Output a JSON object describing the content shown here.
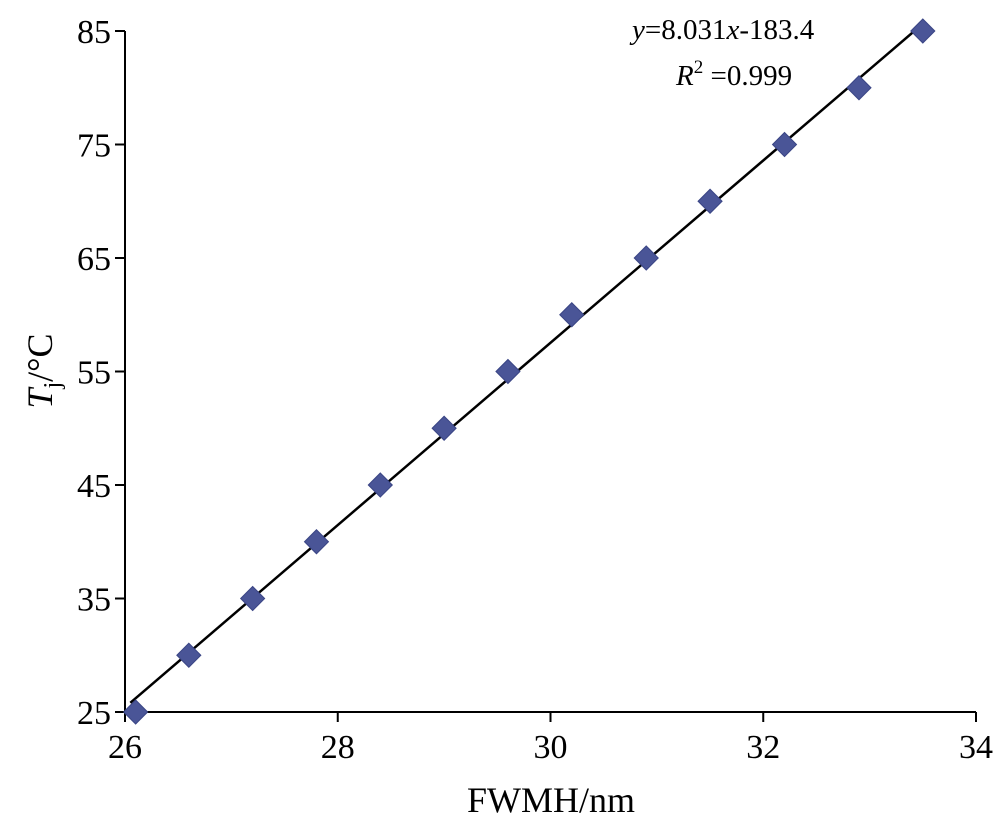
{
  "chart_data": {
    "type": "scatter",
    "title": "",
    "xlabel": "FWMH/nm",
    "ylabel": {
      "symbol": "T",
      "subscript": "j",
      "unit": "/°C"
    },
    "xlim": [
      26,
      34
    ],
    "ylim": [
      25,
      85
    ],
    "x_ticks": [
      26,
      28,
      30,
      32,
      34
    ],
    "y_ticks": [
      25,
      35,
      45,
      55,
      65,
      75,
      85
    ],
    "grid": false,
    "legend": "none",
    "marker": "diamond",
    "colors": {
      "marker": "#4a5597",
      "marker_edge": "#3a4585",
      "fit_line": "#000000"
    },
    "points": [
      {
        "x": 26.1,
        "y": 25
      },
      {
        "x": 26.6,
        "y": 30
      },
      {
        "x": 27.2,
        "y": 35
      },
      {
        "x": 27.8,
        "y": 40
      },
      {
        "x": 28.4,
        "y": 45
      },
      {
        "x": 29.0,
        "y": 50
      },
      {
        "x": 29.6,
        "y": 55
      },
      {
        "x": 30.2,
        "y": 60
      },
      {
        "x": 30.9,
        "y": 65
      },
      {
        "x": 31.5,
        "y": 70
      },
      {
        "x": 32.2,
        "y": 75
      },
      {
        "x": 32.9,
        "y": 80
      },
      {
        "x": 33.5,
        "y": 85
      }
    ],
    "fit": {
      "slope": 8.031,
      "intercept": -183.4,
      "x_range": [
        26.05,
        33.5
      ]
    },
    "annotations": {
      "equation": {
        "y_var": "y",
        "eq_mid": "=8.031",
        "x_var": "x",
        "eq_tail": "-183.4"
      },
      "r2": {
        "symbol": "R",
        "power": "2",
        "value": " =0.999"
      }
    }
  }
}
